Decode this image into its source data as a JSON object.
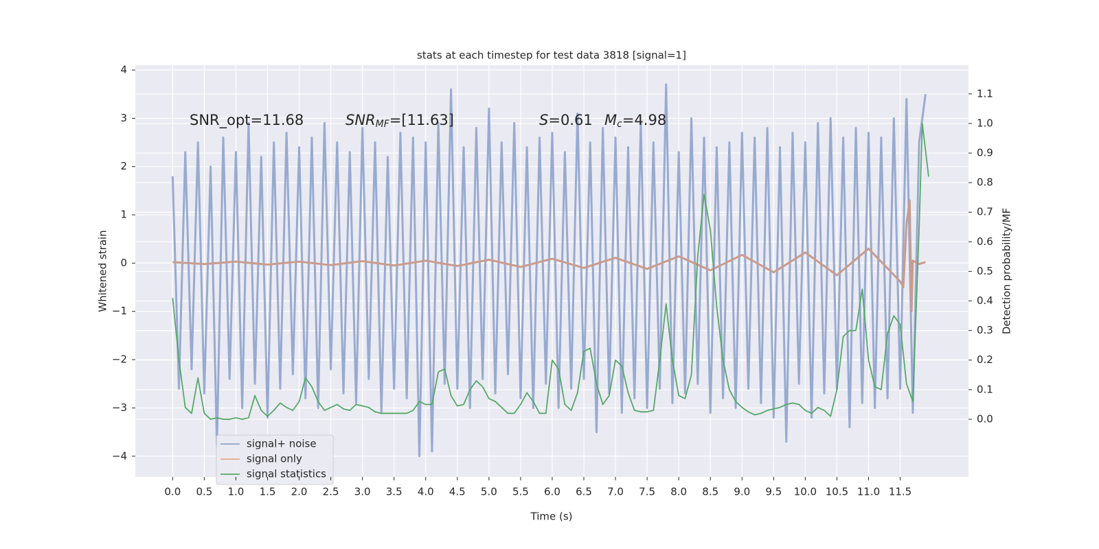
{
  "chart_data": {
    "type": "line",
    "title": "stats at each timestep for test data 3818 [signal=1]",
    "xlabel": "Time (s)",
    "ylabel": "Whitened strain",
    "y2label": "Detection probability/MF",
    "annotations": {
      "snr_opt": "SNR_opt=11.68",
      "snr_mf": {
        "symbol": "SNR",
        "subscript": "MF",
        "rest": "=[11.63]"
      },
      "s": {
        "symbol": "S",
        "rest": "=0.61"
      },
      "mc": {
        "symbol": "M",
        "subscript": "c",
        "rest": "=4.98"
      }
    },
    "xlim": [
      -0.59,
      12.58
    ],
    "ylim": [
      -4.43,
      4.1
    ],
    "y2lim": [
      -0.195,
      1.197
    ],
    "xticks": [
      {
        "value": 0,
        "label": "0.0"
      },
      0.5,
      {
        "value": 1,
        "label": "1.0"
      },
      1.5,
      {
        "value": 2,
        "label": "2.0"
      },
      2.5,
      {
        "value": 3,
        "label": "3.0"
      },
      3.5,
      {
        "value": 4,
        "label": "4.0"
      },
      4.5,
      {
        "value": 5,
        "label": "5.0"
      },
      5.5,
      {
        "value": 6,
        "label": "6.0"
      },
      6.5,
      {
        "value": 7,
        "label": "7.0"
      },
      7.5,
      {
        "value": 8,
        "label": "8.0"
      },
      8.5,
      {
        "value": 9,
        "label": "9.0"
      },
      9.5,
      {
        "value": 10,
        "label": "10.0"
      },
      10.5,
      {
        "value": 11,
        "label": "11.0"
      },
      11.5
    ],
    "yticks": [
      {
        "value": -4,
        "label": "−4"
      },
      {
        "value": -3,
        "label": "−3"
      },
      {
        "value": -2,
        "label": "−2"
      },
      {
        "value": -1,
        "label": "−1"
      },
      0,
      1,
      2,
      3,
      4
    ],
    "y2ticks": [
      {
        "value": 0,
        "label": "0.0"
      },
      0.1,
      0.2,
      0.3,
      0.4,
      0.5,
      0.6,
      0.7,
      0.8,
      0.9,
      {
        "value": 1,
        "label": "1.0"
      },
      1.1
    ],
    "grid": true,
    "legend": "lower left",
    "series": [
      {
        "name": "signal+ noise",
        "color": "#98aad0",
        "legend_color": "#8fa3cc",
        "x": [
          0,
          0.1,
          0.2,
          0.3,
          0.4,
          0.5,
          0.6,
          0.7,
          0.8,
          0.9,
          1,
          1.1,
          1.2,
          1.3,
          1.4,
          1.5,
          1.6,
          1.7,
          1.8,
          1.9,
          2,
          2.1,
          2.2,
          2.3,
          2.4,
          2.5,
          2.6,
          2.7,
          2.8,
          2.9,
          3,
          3.1,
          3.2,
          3.3,
          3.4,
          3.5,
          3.6,
          3.7,
          3.8,
          3.9,
          4,
          4.1,
          4.2,
          4.3,
          4.4,
          4.5,
          4.6,
          4.7,
          4.8,
          4.9,
          5,
          5.1,
          5.2,
          5.3,
          5.4,
          5.5,
          5.6,
          5.7,
          5.8,
          5.9,
          6,
          6.1,
          6.2,
          6.3,
          6.4,
          6.5,
          6.6,
          6.7,
          6.8,
          6.9,
          7,
          7.1,
          7.2,
          7.3,
          7.4,
          7.5,
          7.6,
          7.7,
          7.8,
          7.9,
          8,
          8.1,
          8.2,
          8.3,
          8.4,
          8.5,
          8.6,
          8.7,
          8.8,
          8.9,
          9,
          9.1,
          9.2,
          9.3,
          9.4,
          9.5,
          9.6,
          9.7,
          9.8,
          9.9,
          10,
          10.1,
          10.2,
          10.3,
          10.4,
          10.5,
          10.6,
          10.7,
          10.8,
          10.9,
          11,
          11.1,
          11.2,
          11.3,
          11.4,
          11.5,
          11.6,
          11.7,
          11.8,
          11.9
        ],
        "values": [
          1.8,
          -2.6,
          2.3,
          -2.2,
          2.5,
          -2.7,
          2.0,
          -3.8,
          2.6,
          -2.4,
          2.3,
          -3.0,
          2.9,
          -2.5,
          2.2,
          -3.2,
          2.5,
          -2.6,
          2.7,
          -2.3,
          2.4,
          -2.8,
          2.6,
          -3.0,
          2.9,
          -2.2,
          2.5,
          -2.7,
          2.3,
          -2.9,
          2.8,
          -2.4,
          2.5,
          -3.1,
          2.2,
          -2.6,
          2.7,
          -2.8,
          2.6,
          -4.0,
          2.5,
          -3.9,
          2.9,
          -2.5,
          3.6,
          -2.6,
          2.4,
          -3.0,
          2.8,
          -2.4,
          3.2,
          -2.7,
          2.5,
          -2.3,
          2.9,
          -2.8,
          2.4,
          -3.0,
          2.6,
          -2.5,
          2.7,
          -3.0,
          2.3,
          -2.6,
          3.1,
          -2.4,
          2.5,
          -3.5,
          2.8,
          -2.7,
          2.6,
          -3.1,
          2.4,
          -2.8,
          2.9,
          -3.0,
          2.5,
          -2.6,
          3.7,
          -2.9,
          2.3,
          -2.7,
          3.0,
          -2.5,
          2.6,
          -3.1,
          2.4,
          -2.8,
          2.5,
          -3.0,
          2.7,
          -2.6,
          2.6,
          -2.9,
          2.8,
          -3.2,
          2.4,
          -3.7,
          2.7,
          -2.5,
          2.5,
          -3.2,
          2.9,
          -2.7,
          3.0,
          -2.6,
          2.6,
          -3.4,
          2.8,
          -2.9,
          2.7,
          -3.0,
          2.6,
          -2.8,
          3.0,
          -2.6,
          3.4,
          -3.1,
          2.5,
          3.5
        ]
      },
      {
        "name": "signal only",
        "color": "#c99c8e",
        "legend_color": "#e8a88c",
        "x": [
          0,
          0.5,
          1,
          1.5,
          2,
          2.5,
          3,
          3.5,
          4,
          4.5,
          5,
          5.5,
          6,
          6.5,
          7,
          7.5,
          8,
          8.5,
          9,
          9.5,
          10,
          10.5,
          11,
          11.5,
          11.55,
          11.6,
          11.65,
          11.68,
          11.7,
          11.8,
          11.9
        ],
        "values": [
          0.02,
          -0.02,
          0.03,
          -0.03,
          0.03,
          -0.04,
          0.04,
          -0.05,
          0.05,
          -0.06,
          0.07,
          -0.08,
          0.09,
          -0.1,
          0.11,
          -0.12,
          0.14,
          -0.15,
          0.17,
          -0.19,
          0.22,
          -0.25,
          0.3,
          -0.38,
          -0.5,
          0.8,
          1.3,
          -1.0,
          0.05,
          -0.02,
          0.02
        ]
      },
      {
        "name": "signal statistics",
        "color": "#55a868",
        "axis": "y2",
        "x": [
          0,
          0.1,
          0.2,
          0.3,
          0.4,
          0.5,
          0.6,
          0.7,
          0.8,
          0.9,
          1,
          1.1,
          1.2,
          1.3,
          1.4,
          1.5,
          1.6,
          1.7,
          1.8,
          1.9,
          2,
          2.1,
          2.2,
          2.3,
          2.4,
          2.5,
          2.6,
          2.7,
          2.8,
          2.9,
          3,
          3.1,
          3.2,
          3.3,
          3.4,
          3.5,
          3.6,
          3.7,
          3.8,
          3.9,
          4,
          4.1,
          4.2,
          4.3,
          4.4,
          4.5,
          4.6,
          4.7,
          4.8,
          4.9,
          5,
          5.1,
          5.2,
          5.3,
          5.4,
          5.5,
          5.6,
          5.7,
          5.8,
          5.9,
          6,
          6.1,
          6.2,
          6.3,
          6.4,
          6.5,
          6.6,
          6.7,
          6.8,
          6.9,
          7,
          7.1,
          7.2,
          7.3,
          7.4,
          7.5,
          7.6,
          7.7,
          7.8,
          7.9,
          8,
          8.1,
          8.2,
          8.3,
          8.4,
          8.5,
          8.6,
          8.7,
          8.8,
          8.9,
          9,
          9.1,
          9.2,
          9.3,
          9.4,
          9.5,
          9.6,
          9.7,
          9.8,
          9.9,
          10,
          10.1,
          10.2,
          10.3,
          10.4,
          10.5,
          10.6,
          10.7,
          10.8,
          10.9,
          11,
          11.1,
          11.2,
          11.3,
          11.4,
          11.5,
          11.6,
          11.7,
          11.8,
          11.85,
          11.95
        ],
        "values": [
          0.41,
          0.2,
          0.04,
          0.02,
          0.14,
          0.02,
          0,
          0.005,
          0,
          0,
          0.005,
          0,
          0.005,
          0.08,
          0.03,
          0.01,
          0.03,
          0.055,
          0.04,
          0.03,
          0.06,
          0.14,
          0.11,
          0.06,
          0.03,
          0.04,
          0.05,
          0.035,
          0.03,
          0.05,
          0.045,
          0.04,
          0.025,
          0.02,
          0.02,
          0.02,
          0.02,
          0.02,
          0.03,
          0.06,
          0.05,
          0.05,
          0.16,
          0.17,
          0.08,
          0.045,
          0.05,
          0.1,
          0.13,
          0.11,
          0.07,
          0.06,
          0.04,
          0.02,
          0.02,
          0.05,
          0.09,
          0.06,
          0.02,
          0.02,
          0.2,
          0.17,
          0.05,
          0.03,
          0.09,
          0.23,
          0.24,
          0.12,
          0.05,
          0.08,
          0.2,
          0.18,
          0.09,
          0.03,
          0.025,
          0.025,
          0.03,
          0.2,
          0.39,
          0.2,
          0.08,
          0.07,
          0.15,
          0.55,
          0.76,
          0.64,
          0.38,
          0.2,
          0.1,
          0.06,
          0.04,
          0.025,
          0.015,
          0.02,
          0.03,
          0.035,
          0.04,
          0.05,
          0.055,
          0.05,
          0.03,
          0.02,
          0.04,
          0.03,
          0.01,
          0.1,
          0.28,
          0.3,
          0.3,
          0.44,
          0.2,
          0.11,
          0.1,
          0.29,
          0.35,
          0.32,
          0.12,
          0.06,
          0.65,
          1.0,
          0.82
        ]
      }
    ]
  }
}
